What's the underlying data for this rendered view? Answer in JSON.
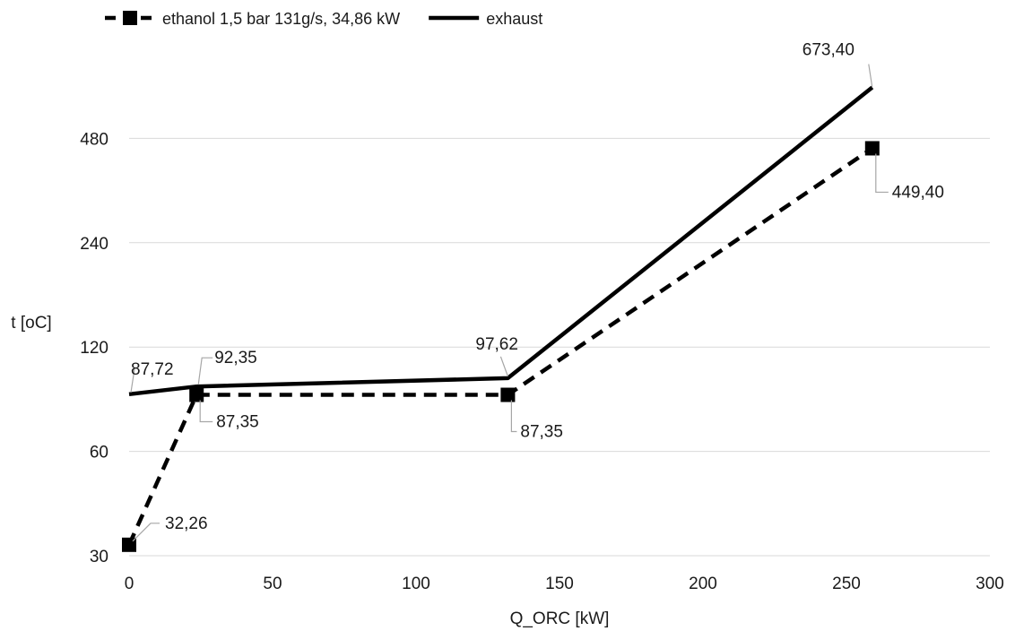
{
  "chart_data": {
    "type": "line",
    "xlabel": "Q_ORC [kW]",
    "ylabel": "t [oC]",
    "xlim": [
      0,
      300
    ],
    "ylim": [
      30,
      960
    ],
    "yscale": "log",
    "xticks": [
      0,
      50,
      100,
      150,
      200,
      250,
      300
    ],
    "yticks": [
      30,
      60,
      120,
      240,
      480
    ],
    "grid": "horizontal",
    "legend_position": "top-left",
    "series": [
      {
        "name": "ethanol 1,5 bar 131g/s, 34,86 kW",
        "style": "dashed-square-markers",
        "color": "#000000",
        "points": [
          {
            "x": 0,
            "y": 32.26
          },
          {
            "x": 23.5,
            "y": 87.35
          },
          {
            "x": 132,
            "y": 87.35
          },
          {
            "x": 259,
            "y": 449.4
          }
        ],
        "labels": [
          {
            "text": "32,26",
            "point": 0
          },
          {
            "text": "87,35",
            "point": 1
          },
          {
            "text": "87,35",
            "point": 2
          },
          {
            "text": "449,40",
            "point": 3
          }
        ]
      },
      {
        "name": "exhaust",
        "style": "solid",
        "color": "#000000",
        "points": [
          {
            "x": 0,
            "y": 87.72
          },
          {
            "x": 23.5,
            "y": 92.35
          },
          {
            "x": 132,
            "y": 97.62
          },
          {
            "x": 259,
            "y": 673.4
          }
        ],
        "labels": [
          {
            "text": "87,72",
            "point": 0
          },
          {
            "text": "92,35",
            "point": 1
          },
          {
            "text": "97,62",
            "point": 2
          },
          {
            "text": "673,40",
            "point": 3
          }
        ]
      }
    ]
  }
}
